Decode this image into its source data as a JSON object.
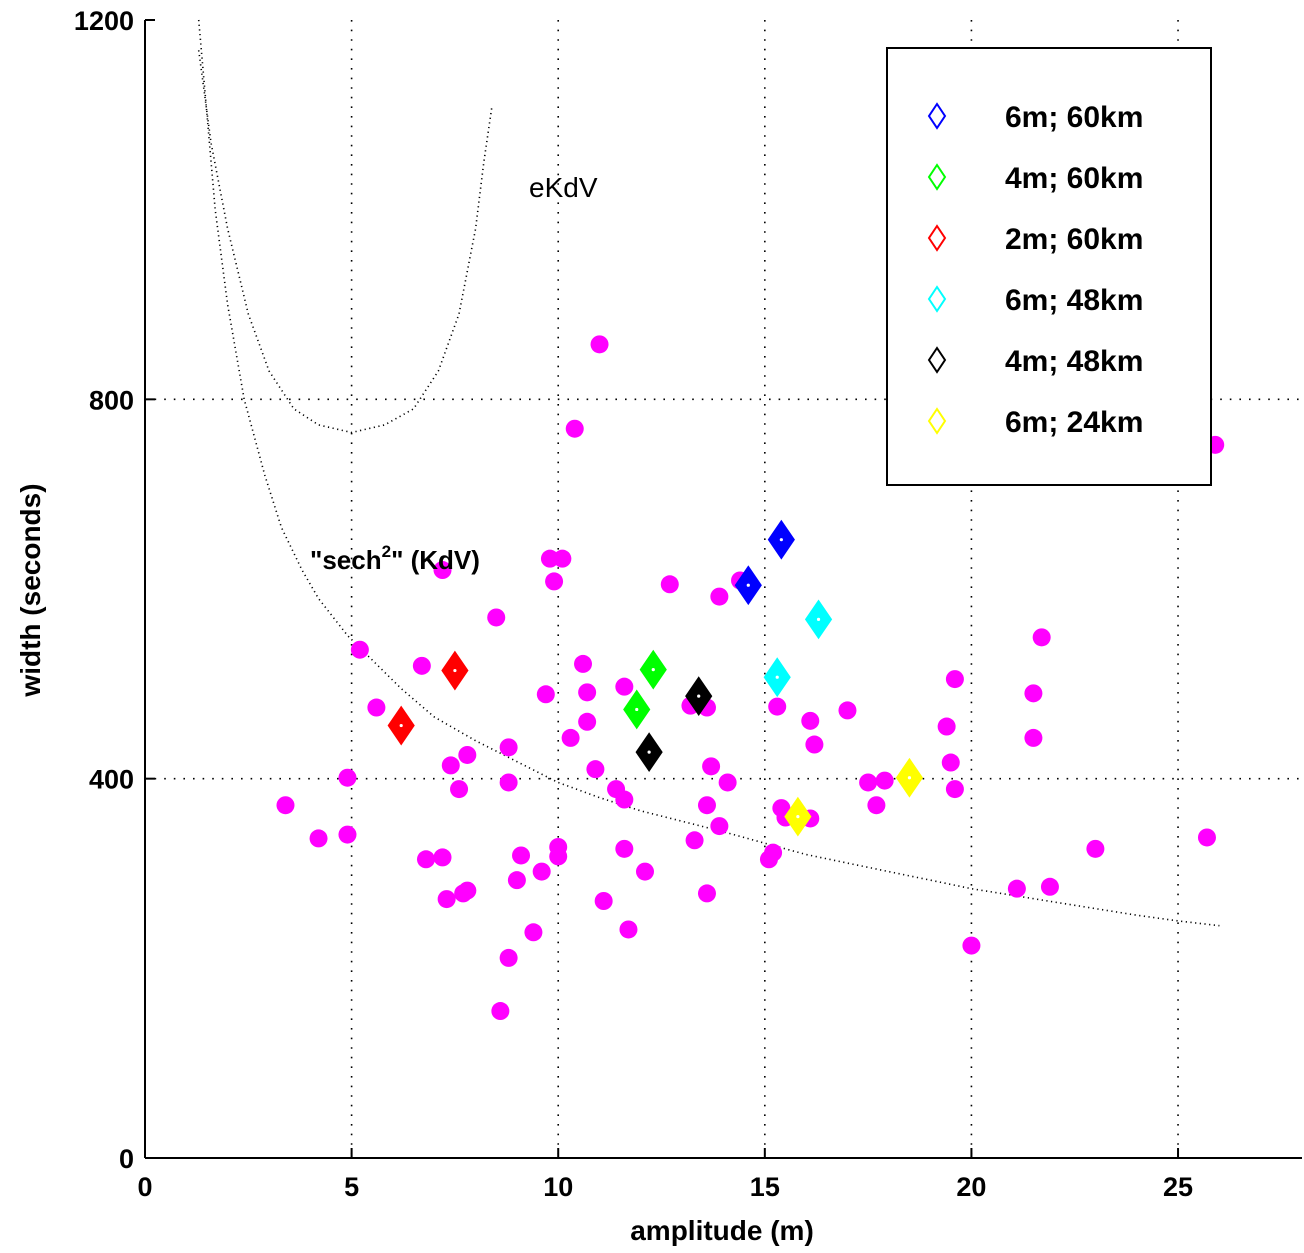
{
  "chart_data": {
    "type": "scatter",
    "title": "",
    "xlabel": "amplitude (m)",
    "ylabel": "width (seconds)",
    "xlim": [
      0,
      28
    ],
    "ylim": [
      0,
      1200
    ],
    "x_ticks": [
      0,
      5,
      10,
      15,
      20,
      25
    ],
    "x_tick_labels": [
      "0",
      "5",
      "10",
      "15",
      "20",
      "25"
    ],
    "y_ticks": [
      0,
      400,
      800,
      1200
    ],
    "y_tick_labels": [
      "0",
      "400",
      "800",
      "1200"
    ],
    "grid": "dotted, at major ticks",
    "legend_position": "top-right",
    "annotations": {
      "ekdv": "eKdV",
      "sech_pre": "\"sech",
      "sech_sup": "2",
      "sech_post": "\" (KdV)"
    },
    "observations": {
      "color": "#ff00ff",
      "points": [
        [
          3.4,
          372
        ],
        [
          4.2,
          337
        ],
        [
          4.9,
          401
        ],
        [
          4.9,
          341
        ],
        [
          5.2,
          536
        ],
        [
          5.6,
          475
        ],
        [
          6.7,
          519
        ],
        [
          6.8,
          315
        ],
        [
          7.2,
          317
        ],
        [
          7.2,
          620
        ],
        [
          7.3,
          273
        ],
        [
          7.4,
          414
        ],
        [
          7.6,
          389
        ],
        [
          7.7,
          279
        ],
        [
          7.8,
          282
        ],
        [
          7.8,
          425
        ],
        [
          8.5,
          570
        ],
        [
          8.6,
          155
        ],
        [
          8.8,
          211
        ],
        [
          8.8,
          433
        ],
        [
          8.8,
          396
        ],
        [
          9.0,
          293
        ],
        [
          9.1,
          319
        ],
        [
          9.4,
          238
        ],
        [
          9.6,
          302
        ],
        [
          9.7,
          489
        ],
        [
          9.8,
          632
        ],
        [
          9.9,
          608
        ],
        [
          10.0,
          318
        ],
        [
          10.0,
          328
        ],
        [
          10.1,
          632
        ],
        [
          10.3,
          443
        ],
        [
          10.4,
          769
        ],
        [
          10.6,
          521
        ],
        [
          10.7,
          460
        ],
        [
          10.7,
          491
        ],
        [
          10.9,
          410
        ],
        [
          11.0,
          858
        ],
        [
          11.1,
          271
        ],
        [
          11.4,
          389
        ],
        [
          11.6,
          378
        ],
        [
          11.6,
          497
        ],
        [
          11.6,
          326
        ],
        [
          11.7,
          241
        ],
        [
          11.9,
          469
        ],
        [
          12.1,
          302
        ],
        [
          12.7,
          605
        ],
        [
          13.2,
          477
        ],
        [
          13.3,
          335
        ],
        [
          13.6,
          475
        ],
        [
          13.6,
          372
        ],
        [
          13.6,
          279
        ],
        [
          13.7,
          413
        ],
        [
          13.9,
          592
        ],
        [
          13.9,
          350
        ],
        [
          14.1,
          396
        ],
        [
          14.4,
          609
        ],
        [
          15.1,
          315
        ],
        [
          15.2,
          322
        ],
        [
          15.3,
          476
        ],
        [
          15.4,
          369
        ],
        [
          15.5,
          359
        ],
        [
          16.1,
          461
        ],
        [
          16.1,
          358
        ],
        [
          16.2,
          436
        ],
        [
          17.0,
          472
        ],
        [
          17.5,
          396
        ],
        [
          17.7,
          372
        ],
        [
          17.9,
          398
        ],
        [
          19.4,
          455
        ],
        [
          19.5,
          417
        ],
        [
          19.6,
          505
        ],
        [
          19.6,
          389
        ],
        [
          20.0,
          224
        ],
        [
          21.1,
          284
        ],
        [
          21.5,
          490
        ],
        [
          21.5,
          443
        ],
        [
          21.7,
          549
        ],
        [
          21.9,
          286
        ],
        [
          23.0,
          326
        ],
        [
          25.7,
          338
        ],
        [
          25.9,
          752
        ]
      ]
    },
    "series": [
      {
        "name": "6m; 60km",
        "color": "#0000ff",
        "points": [
          [
            14.6,
            604
          ],
          [
            15.4,
            652
          ]
        ]
      },
      {
        "name": "4m; 60km",
        "color": "#00ff00",
        "points": [
          [
            11.9,
            473
          ],
          [
            12.3,
            515
          ]
        ]
      },
      {
        "name": "2m; 60km",
        "color": "#ff0000",
        "points": [
          [
            6.2,
            456
          ],
          [
            7.5,
            514
          ]
        ]
      },
      {
        "name": "6m; 48km",
        "color": "#00ffff",
        "points": [
          [
            15.3,
            507
          ],
          [
            16.3,
            568
          ]
        ]
      },
      {
        "name": "4m; 48km",
        "color": "#000000",
        "points": [
          [
            12.2,
            428
          ],
          [
            13.4,
            487
          ]
        ]
      },
      {
        "name": "6m; 24km",
        "color": "#ffff00",
        "points": [
          [
            15.8,
            360
          ],
          [
            18.5,
            401
          ]
        ]
      }
    ],
    "model_curves": [
      {
        "label_key": "ekdv",
        "points": [
          [
            1.3,
            1168
          ],
          [
            1.6,
            1070
          ],
          [
            2.0,
            980
          ],
          [
            2.5,
            890
          ],
          [
            3.0,
            830
          ],
          [
            3.6,
            790
          ],
          [
            4.2,
            773
          ],
          [
            5.0,
            765
          ],
          [
            5.8,
            773
          ],
          [
            6.5,
            790
          ],
          [
            7.1,
            830
          ],
          [
            7.6,
            890
          ],
          [
            8.0,
            980
          ],
          [
            8.2,
            1050
          ],
          [
            8.4,
            1110
          ]
        ]
      },
      {
        "label_key": "sech",
        "points": [
          [
            1.3,
            1200
          ],
          [
            1.5,
            1100
          ],
          [
            1.7,
            1000
          ],
          [
            2.0,
            900
          ],
          [
            2.4,
            800
          ],
          [
            2.9,
            720
          ],
          [
            3.3,
            665
          ],
          [
            3.8,
            620
          ],
          [
            4.2,
            590
          ],
          [
            4.9,
            551
          ],
          [
            5.5,
            525
          ],
          [
            6.2,
            495
          ],
          [
            7.0,
            465
          ],
          [
            8.0,
            440
          ],
          [
            9.0,
            418
          ],
          [
            10.0,
            396
          ],
          [
            11.0,
            380
          ],
          [
            12.0,
            366
          ],
          [
            13.0,
            355
          ],
          [
            14.0,
            344
          ],
          [
            15.0,
            332
          ],
          [
            16.0,
            320
          ],
          [
            17.0,
            311
          ],
          [
            18.0,
            302
          ],
          [
            19.0,
            293
          ],
          [
            20.0,
            284
          ],
          [
            21.0,
            277
          ],
          [
            22.0,
            270
          ],
          [
            23.0,
            263
          ],
          [
            24.0,
            256
          ],
          [
            25.0,
            250
          ],
          [
            26.0,
            245
          ]
        ]
      }
    ]
  }
}
